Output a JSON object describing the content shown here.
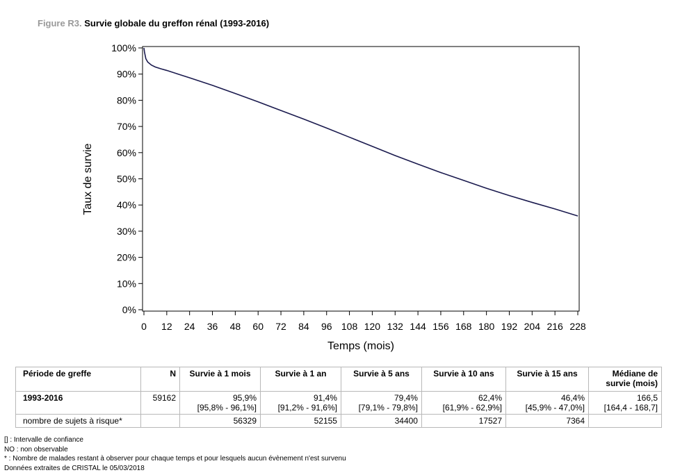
{
  "figure": {
    "label": "Figure R3.",
    "title": "Survie globale du greffon rénal (1993-2016)"
  },
  "chart_data": {
    "type": "line",
    "xlabel": "Temps (mois)",
    "ylabel": "Taux de survie",
    "xlim": [
      0,
      228
    ],
    "ylim": [
      0,
      100
    ],
    "x_ticks": [
      "0",
      "12",
      "24",
      "36",
      "48",
      "60",
      "72",
      "84",
      "96",
      "108",
      "120",
      "132",
      "144",
      "156",
      "168",
      "180",
      "192",
      "204",
      "216",
      "228"
    ],
    "y_ticks": [
      "0%",
      "10%",
      "20%",
      "30%",
      "40%",
      "50%",
      "60%",
      "70%",
      "80%",
      "90%",
      "100%"
    ],
    "grid": false,
    "color": "#1a1a4e",
    "series": [
      {
        "x": [
          0,
          0.3,
          1,
          2,
          4,
          6,
          9,
          12,
          18,
          24,
          36,
          48,
          60,
          72,
          84,
          96,
          108,
          120,
          132,
          144,
          156,
          168,
          180,
          192,
          204,
          216,
          228
        ],
        "y": [
          100,
          98.4,
          95.9,
          94.6,
          93.4,
          92.7,
          92.0,
          91.4,
          90.0,
          88.6,
          85.7,
          82.6,
          79.4,
          76.1,
          72.8,
          69.4,
          65.9,
          62.4,
          58.9,
          55.6,
          52.4,
          49.4,
          46.4,
          43.6,
          41.0,
          38.5,
          35.8
        ]
      }
    ]
  },
  "table": {
    "headers": [
      "Période de greffe",
      "N",
      "Survie à 1 mois",
      "Survie à 1 an",
      "Survie à 5 ans",
      "Survie à 10 ans",
      "Survie à 15 ans",
      "Médiane de survie (mois)"
    ],
    "row": {
      "period": "1993-2016",
      "n": "59162",
      "values": [
        "95,9%",
        "91,4%",
        "79,4%",
        "62,4%",
        "46,4%",
        "166,5"
      ],
      "ci": [
        "[95,8% - 96,1%]",
        "[91,2% - 91,6%]",
        "[79,1% - 79,8%]",
        "[61,9% - 62,9%]",
        "[45,9% - 47,0%]",
        "[164,4 - 168,7]"
      ]
    },
    "risk_row": {
      "label": "nombre de sujets à risque*",
      "values": [
        "56329",
        "52155",
        "34400",
        "17527",
        "7364"
      ]
    }
  },
  "footnotes": [
    "[] : Intervalle de confiance",
    "NO : non observable",
    "* : Nombre de malades restant à observer pour chaque temps et pour lesquels aucun évènement n'est survenu",
    "Données extraites de CRISTAL le 05/03/2018"
  ]
}
